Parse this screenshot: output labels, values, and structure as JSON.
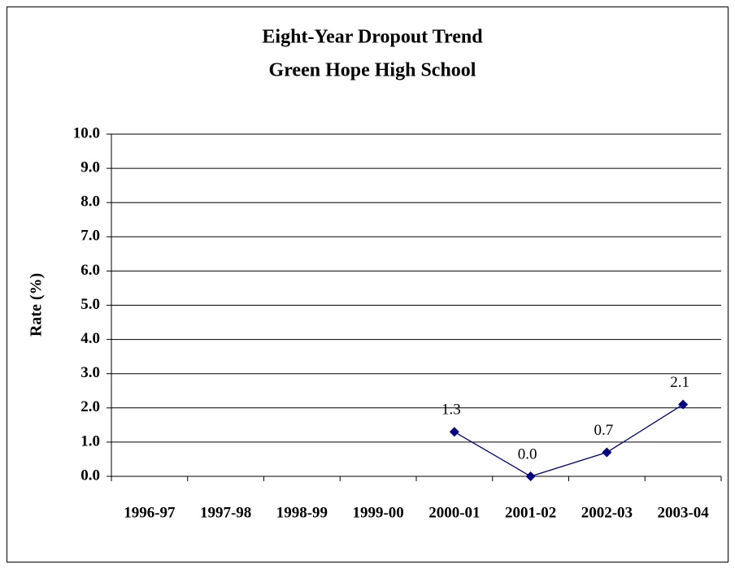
{
  "chart_data": {
    "type": "line",
    "title": "Eight-Year Dropout Trend",
    "subtitle": "Green Hope High School",
    "y_label": "Rate (%)",
    "categories": [
      "1996-97",
      "1997-98",
      "1998-99",
      "1999-00",
      "2000-01",
      "2001-02",
      "2002-03",
      "2003-04"
    ],
    "series": [
      {
        "color": "#000080",
        "values": [
          null,
          null,
          null,
          null,
          1.3,
          0,
          0.7,
          2.1
        ],
        "value_labels": [
          null,
          null,
          null,
          null,
          "1.3",
          "0.0",
          "0.7",
          "2.1"
        ]
      }
    ],
    "ylim": [
      0,
      10
    ],
    "yticks": [
      {
        "value": 0,
        "label": "0.0"
      },
      {
        "value": 1,
        "label": "1.0"
      },
      {
        "value": 2,
        "label": "2.0"
      },
      {
        "value": 3,
        "label": "3.0"
      },
      {
        "value": 4,
        "label": "4.0"
      },
      {
        "value": 5,
        "label": "5.0"
      },
      {
        "value": 6,
        "label": "6.0"
      },
      {
        "value": 7,
        "label": "7.0"
      },
      {
        "value": 8,
        "label": "8.0"
      },
      {
        "value": 9,
        "label": "9.0"
      },
      {
        "value": 10,
        "label": "10.0"
      }
    ],
    "grid": true
  }
}
